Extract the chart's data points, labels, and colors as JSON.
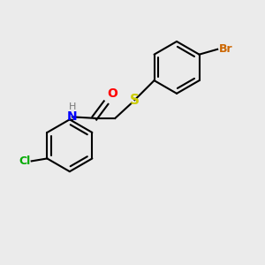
{
  "background_color": "#ebebeb",
  "bond_color": "#000000",
  "atom_colors": {
    "Br": "#cc6600",
    "S": "#cccc00",
    "O": "#ff0000",
    "N": "#0000ff",
    "H": "#777777",
    "Cl": "#00aa00",
    "C": "#000000"
  },
  "figsize": [
    3.0,
    3.0
  ],
  "dpi": 100
}
